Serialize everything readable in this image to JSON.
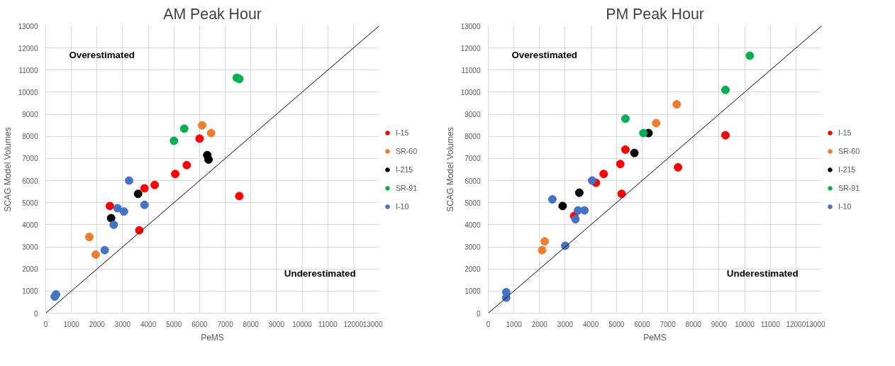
{
  "chart_data": [
    {
      "type": "scatter",
      "title": "AM Peak Hour",
      "xlabel": "PeMS",
      "ylabel": "SCAG Model Volumes",
      "xlim": [
        0,
        13000
      ],
      "ylim": [
        0,
        13000
      ],
      "xticks": [
        0,
        1000,
        2000,
        3000,
        4000,
        5000,
        6000,
        7000,
        8000,
        9000,
        10000,
        11000,
        12000,
        13000
      ],
      "yticks": [
        0,
        1000,
        2000,
        3000,
        4000,
        5000,
        6000,
        7000,
        8000,
        9000,
        10000,
        11000,
        12000,
        13000
      ],
      "grid": true,
      "legend": "right",
      "marker": "circle",
      "annotations": [
        "Overestimated",
        "Underestimated"
      ],
      "series": [
        {
          "name": "I-15",
          "color": "#ff0000",
          "x": [
            2500,
            3650,
            3850,
            4250,
            5050,
            5500,
            6000,
            7550
          ],
          "values": [
            4850,
            3750,
            5650,
            5800,
            6300,
            6700,
            7900,
            5300
          ]
        },
        {
          "name": "SR-60",
          "color": "#ed7d31",
          "x": [
            1700,
            1950,
            6100,
            6450
          ],
          "values": [
            3450,
            2650,
            8500,
            8150
          ]
        },
        {
          "name": "I-215",
          "color": "#000000",
          "x": [
            2550,
            3600,
            6300,
            6350
          ],
          "values": [
            4300,
            5400,
            7150,
            6950
          ]
        },
        {
          "name": "SR-91",
          "color": "#00b050",
          "x": [
            5000,
            5400,
            7450,
            7550
          ],
          "values": [
            7800,
            8350,
            10650,
            10600
          ]
        },
        {
          "name": "I-10",
          "color": "#4472c4",
          "x": [
            350,
            400,
            2300,
            2650,
            2800,
            3050,
            3250,
            3850
          ],
          "values": [
            750,
            850,
            2850,
            4000,
            4750,
            4600,
            6000,
            4900
          ]
        },
        {
          "type": "line",
          "color": "#000000",
          "line_style": "solid",
          "marker": "none",
          "x": [
            0,
            13000
          ],
          "values": [
            0,
            13000
          ]
        }
      ]
    },
    {
      "type": "scatter",
      "title": "PM Peak Hour",
      "xlabel": "PeMS",
      "ylabel": "SCAG Model Volumes",
      "xlim": [
        0,
        13000
      ],
      "ylim": [
        0,
        13000
      ],
      "xticks": [
        0,
        1000,
        2000,
        3000,
        4000,
        5000,
        6000,
        7000,
        8000,
        9000,
        10000,
        11000,
        12000,
        13000
      ],
      "yticks": [
        0,
        1000,
        2000,
        3000,
        4000,
        5000,
        6000,
        7000,
        8000,
        9000,
        10000,
        11000,
        12000,
        13000
      ],
      "grid": true,
      "legend": "right",
      "marker": "circle",
      "annotations": [
        "Overestimated",
        "Underestimated"
      ],
      "series": [
        {
          "name": "I-15",
          "color": "#ff0000",
          "x": [
            3350,
            4200,
            4500,
            5150,
            5200,
            5350,
            7400,
            9250
          ],
          "values": [
            4400,
            5900,
            6300,
            6750,
            5400,
            7400,
            6600,
            8050
          ]
        },
        {
          "name": "SR-60",
          "color": "#ed7d31",
          "x": [
            2100,
            2200,
            6550,
            7350
          ],
          "values": [
            2850,
            3250,
            8600,
            9450
          ]
        },
        {
          "name": "I-215",
          "color": "#000000",
          "x": [
            2900,
            3550,
            5700,
            6250
          ],
          "values": [
            4850,
            5450,
            7250,
            8150
          ]
        },
        {
          "name": "SR-91",
          "color": "#00b050",
          "x": [
            5350,
            6050,
            9250,
            10200
          ],
          "values": [
            8800,
            8150,
            10100,
            11650
          ]
        },
        {
          "name": "I-10",
          "color": "#4472c4",
          "x": [
            700,
            700,
            2500,
            3000,
            3400,
            3500,
            3750,
            4050
          ],
          "values": [
            700,
            950,
            5150,
            3050,
            4250,
            4650,
            4650,
            6000
          ]
        },
        {
          "type": "line",
          "color": "#000000",
          "line_style": "solid",
          "marker": "none",
          "x": [
            0,
            13000
          ],
          "values": [
            0,
            13000
          ]
        }
      ]
    }
  ]
}
